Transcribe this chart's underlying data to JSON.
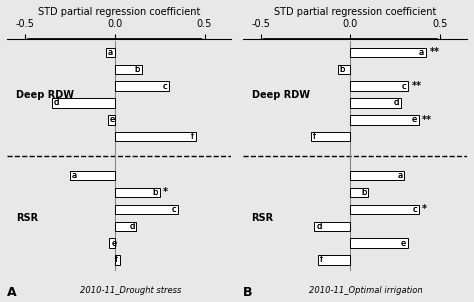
{
  "title": "STD partial regression coefficient",
  "xlim": [
    -0.6,
    0.65
  ],
  "xticks": [
    -0.5,
    0.0,
    0.5
  ],
  "xtick_labels": [
    "-0.5",
    "0.0",
    "0.5"
  ],
  "panel_A": {
    "label": "A",
    "subtitle": "2010-11_Drought stress",
    "deep_rdw": {
      "labels": [
        "a",
        "b",
        "c",
        "d",
        "e",
        "f"
      ],
      "values": [
        -0.05,
        0.15,
        0.3,
        -0.35,
        -0.04,
        0.45
      ],
      "sig": [
        "",
        "",
        "",
        "",
        "",
        ""
      ]
    },
    "rsr": {
      "labels": [
        "a",
        "b",
        "c",
        "d",
        "e",
        "f"
      ],
      "values": [
        -0.25,
        0.25,
        0.35,
        0.12,
        -0.03,
        0.03
      ],
      "sig": [
        "",
        "*",
        "",
        "",
        "",
        ""
      ]
    }
  },
  "panel_B": {
    "label": "B",
    "subtitle": "2010-11_Optimal irrigation",
    "deep_rdw": {
      "labels": [
        "a",
        "b",
        "c",
        "d",
        "e",
        "f"
      ],
      "values": [
        0.42,
        -0.07,
        0.32,
        0.28,
        0.38,
        -0.22
      ],
      "sig": [
        "**",
        "",
        "**",
        "",
        "**",
        ""
      ]
    },
    "rsr": {
      "labels": [
        "a",
        "b",
        "c",
        "d",
        "e",
        "f"
      ],
      "values": [
        0.3,
        0.1,
        0.38,
        -0.2,
        0.32,
        -0.18
      ],
      "sig": [
        "",
        "",
        "*",
        "",
        "",
        ""
      ]
    }
  },
  "bar_color": "white",
  "bar_edgecolor": "black",
  "bar_height": 0.55,
  "group_label_deep": "Deep RDW",
  "group_label_rsr": "RSR",
  "background_color": "#e8e8e8"
}
